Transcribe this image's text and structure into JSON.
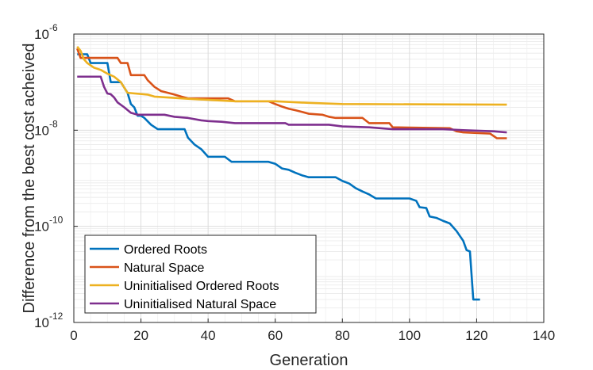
{
  "chart_data": {
    "type": "line",
    "title": "",
    "xlabel": "Generation",
    "ylabel": "Difference from the best cost acheived",
    "xlim": [
      0,
      140
    ],
    "ylim": [
      1e-12,
      1e-06
    ],
    "yscale": "log",
    "grid": true,
    "minor_grid": true,
    "xticks": [
      {
        "value": 0,
        "label": "0"
      },
      {
        "value": 20,
        "label": "20"
      },
      {
        "value": 40,
        "label": "40"
      },
      {
        "value": 60,
        "label": "60"
      },
      {
        "value": 80,
        "label": "80"
      },
      {
        "value": 100,
        "label": "100"
      },
      {
        "value": 120,
        "label": "120"
      },
      {
        "value": 140,
        "label": "140"
      }
    ],
    "yticks": [
      {
        "value": 1e-12,
        "label": "10",
        "exp": "-12"
      },
      {
        "value": 1e-10,
        "label": "10",
        "exp": "-10"
      },
      {
        "value": 1e-08,
        "label": "10",
        "exp": "-8"
      },
      {
        "value": 1e-06,
        "label": "10",
        "exp": "-6"
      }
    ],
    "legend_position": "bottom-left",
    "series": [
      {
        "name": "Ordered Roots",
        "color": "#0072BD",
        "points": [
          [
            1,
            3.8e-07
          ],
          [
            4,
            3.8e-07
          ],
          [
            5,
            2.5e-07
          ],
          [
            10,
            2.5e-07
          ],
          [
            11,
            1e-07
          ],
          [
            14,
            1e-07
          ],
          [
            16,
            6e-08
          ],
          [
            17,
            3.5e-08
          ],
          [
            18,
            3e-08
          ],
          [
            19,
            2e-08
          ],
          [
            20,
            2e-08
          ],
          [
            21,
            1.8e-08
          ],
          [
            23,
            1.3e-08
          ],
          [
            25,
            1.05e-08
          ],
          [
            33,
            1.05e-08
          ],
          [
            34,
            7e-09
          ],
          [
            36,
            5e-09
          ],
          [
            38,
            4e-09
          ],
          [
            40,
            2.8e-09
          ],
          [
            45,
            2.8e-09
          ],
          [
            47,
            2.2e-09
          ],
          [
            58,
            2.2e-09
          ],
          [
            60,
            2e-09
          ],
          [
            62,
            1.6e-09
          ],
          [
            64,
            1.5e-09
          ],
          [
            66,
            1.3e-09
          ],
          [
            68,
            1.15e-09
          ],
          [
            70,
            1.05e-09
          ],
          [
            78,
            1.05e-09
          ],
          [
            80,
            8.8e-10
          ],
          [
            82,
            7.8e-10
          ],
          [
            84,
            6.2e-10
          ],
          [
            86,
            5.3e-10
          ],
          [
            88,
            4.6e-10
          ],
          [
            90,
            3.8e-10
          ],
          [
            100,
            3.8e-10
          ],
          [
            102,
            3.4e-10
          ],
          [
            103,
            2.5e-10
          ],
          [
            105,
            2.4e-10
          ],
          [
            106,
            1.6e-10
          ],
          [
            108,
            1.5e-10
          ],
          [
            110,
            1.3e-10
          ],
          [
            112,
            1.15e-10
          ],
          [
            114,
            8e-11
          ],
          [
            116,
            5e-11
          ],
          [
            117,
            3.2e-11
          ],
          [
            118,
            3e-11
          ],
          [
            119,
            3e-12
          ],
          [
            121,
            3e-12
          ]
        ]
      },
      {
        "name": "Natural Space",
        "color": "#D95319",
        "points": [
          [
            1,
            5e-07
          ],
          [
            2,
            3.2e-07
          ],
          [
            13,
            3.2e-07
          ],
          [
            14,
            2.5e-07
          ],
          [
            16,
            2.5e-07
          ],
          [
            17,
            1.4e-07
          ],
          [
            21,
            1.4e-07
          ],
          [
            22,
            1.1e-07
          ],
          [
            24,
            8e-08
          ],
          [
            26,
            6.5e-08
          ],
          [
            28,
            6e-08
          ],
          [
            30,
            5.5e-08
          ],
          [
            32,
            5e-08
          ],
          [
            34,
            4.6e-08
          ],
          [
            46,
            4.6e-08
          ],
          [
            48,
            4e-08
          ],
          [
            58,
            4e-08
          ],
          [
            60,
            3.5e-08
          ],
          [
            62,
            3.1e-08
          ],
          [
            64,
            2.8e-08
          ],
          [
            66,
            2.6e-08
          ],
          [
            68,
            2.4e-08
          ],
          [
            70,
            2.2e-08
          ],
          [
            74,
            2.1e-08
          ],
          [
            76,
            1.9e-08
          ],
          [
            78,
            1.8e-08
          ],
          [
            86,
            1.8e-08
          ],
          [
            88,
            1.4e-08
          ],
          [
            94,
            1.4e-08
          ],
          [
            95,
            1.15e-08
          ],
          [
            112,
            1.1e-08
          ],
          [
            114,
            9.5e-09
          ],
          [
            116,
            9e-09
          ],
          [
            124,
            8.5e-09
          ],
          [
            126,
            6.8e-09
          ],
          [
            129,
            6.8e-09
          ]
        ]
      },
      {
        "name": "Uninitialised Ordered Roots",
        "color": "#EDB120",
        "points": [
          [
            1,
            5.5e-07
          ],
          [
            2,
            4.5e-07
          ],
          [
            3,
            3e-07
          ],
          [
            4,
            2.5e-07
          ],
          [
            6,
            2e-07
          ],
          [
            8,
            1.8e-07
          ],
          [
            10,
            1.5e-07
          ],
          [
            12,
            1.3e-07
          ],
          [
            14,
            1e-07
          ],
          [
            16,
            6e-08
          ],
          [
            22,
            5.5e-08
          ],
          [
            24,
            5e-08
          ],
          [
            34,
            4.5e-08
          ],
          [
            48,
            4e-08
          ],
          [
            60,
            4e-08
          ],
          [
            70,
            3.7e-08
          ],
          [
            80,
            3.5e-08
          ],
          [
            129,
            3.4e-08
          ]
        ]
      },
      {
        "name": "Uninitialised Natural Space",
        "color": "#7E2F8E",
        "points": [
          [
            1,
            1.3e-07
          ],
          [
            8,
            1.3e-07
          ],
          [
            9,
            8e-08
          ],
          [
            10,
            5.8e-08
          ],
          [
            11,
            5.6e-08
          ],
          [
            12,
            4.8e-08
          ],
          [
            13,
            3.8e-08
          ],
          [
            15,
            3e-08
          ],
          [
            17,
            2.3e-08
          ],
          [
            19,
            2.1e-08
          ],
          [
            27,
            2.1e-08
          ],
          [
            30,
            1.9e-08
          ],
          [
            34,
            1.8e-08
          ],
          [
            38,
            1.6e-08
          ],
          [
            40,
            1.55e-08
          ],
          [
            44,
            1.5e-08
          ],
          [
            48,
            1.4e-08
          ],
          [
            63,
            1.4e-08
          ],
          [
            64,
            1.3e-08
          ],
          [
            76,
            1.3e-08
          ],
          [
            80,
            1.2e-08
          ],
          [
            88,
            1.15e-08
          ],
          [
            95,
            1.05e-08
          ],
          [
            110,
            1.05e-08
          ],
          [
            116,
            1e-08
          ],
          [
            125,
            9.5e-09
          ],
          [
            129,
            9e-09
          ]
        ]
      }
    ]
  }
}
